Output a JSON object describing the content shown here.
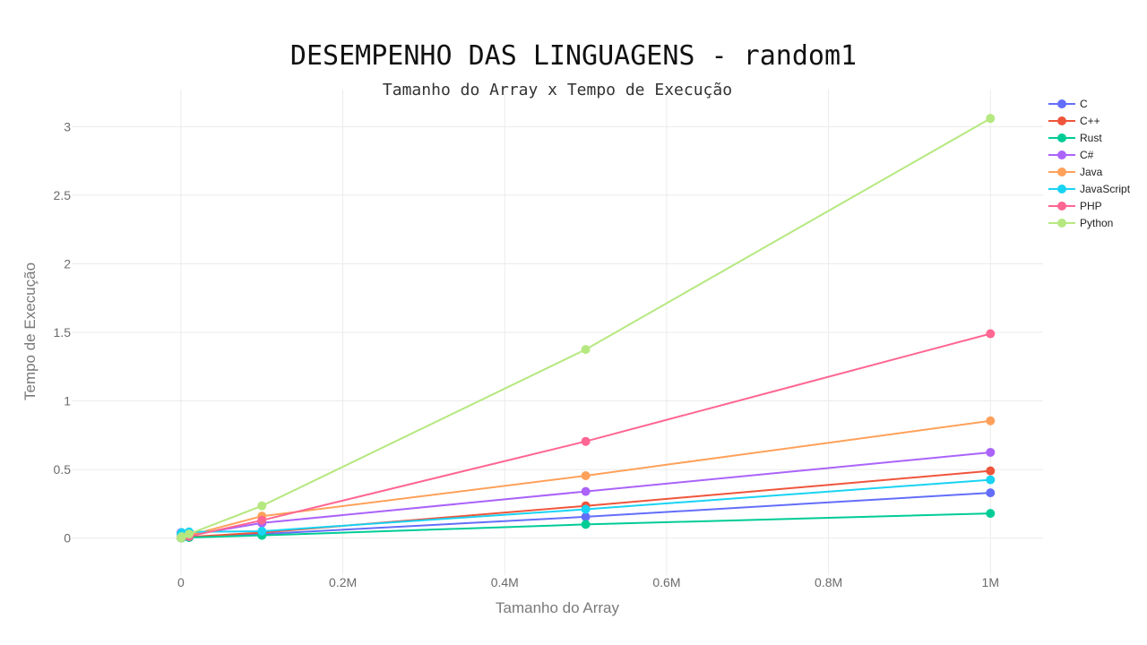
{
  "chart_data": {
    "type": "line",
    "title": "DESEMPENHO DAS LINGUAGENS - random1",
    "subtitle": "Tamanho do Array x Tempo de Execução",
    "xlabel": "Tamanho do Array",
    "ylabel": "Tempo de Execução",
    "xlim": [
      -135000,
      1065000
    ],
    "ylim": [
      -0.27,
      3.27
    ],
    "x_ticks": [
      0,
      200000,
      400000,
      600000,
      800000,
      1000000
    ],
    "x_tick_labels": [
      "0",
      "0.2M",
      "0.4M",
      "0.6M",
      "0.8M",
      "1M"
    ],
    "y_ticks": [
      0,
      0.5,
      1,
      1.5,
      2,
      2.5,
      3
    ],
    "y_tick_labels": [
      "0",
      "0.5",
      "1",
      "1.5",
      "2",
      "2.5",
      "3"
    ],
    "grid": true,
    "legend_position": "top-right",
    "x": [
      100,
      1000,
      10000,
      100000,
      500000,
      1000000
    ],
    "series": [
      {
        "name": "C",
        "color": "#636efa",
        "values": [
          0.002,
          0.004,
          0.006,
          0.03,
          0.155,
          0.33
        ]
      },
      {
        "name": "C++",
        "color": "#ef553b",
        "values": [
          0.003,
          0.005,
          0.008,
          0.04,
          0.235,
          0.49
        ]
      },
      {
        "name": "Rust",
        "color": "#00cc96",
        "values": [
          0.001,
          0.002,
          0.004,
          0.02,
          0.1,
          0.18
        ]
      },
      {
        "name": "C#",
        "color": "#ab63fa",
        "values": [
          0.04,
          0.03,
          0.02,
          0.11,
          0.34,
          0.625
        ]
      },
      {
        "name": "Java",
        "color": "#ffa15a",
        "values": [
          0.01,
          0.012,
          0.02,
          0.16,
          0.455,
          0.855
        ]
      },
      {
        "name": "JavaScript",
        "color": "#19d3f3",
        "values": [
          0.03,
          0.04,
          0.045,
          0.05,
          0.21,
          0.425
        ]
      },
      {
        "name": "PHP",
        "color": "#ff6692",
        "values": [
          0.003,
          0.006,
          0.012,
          0.13,
          0.705,
          1.49
        ]
      },
      {
        "name": "Python",
        "color": "#b6e880",
        "values": [
          0.002,
          0.01,
          0.03,
          0.235,
          1.375,
          3.06
        ]
      }
    ]
  }
}
